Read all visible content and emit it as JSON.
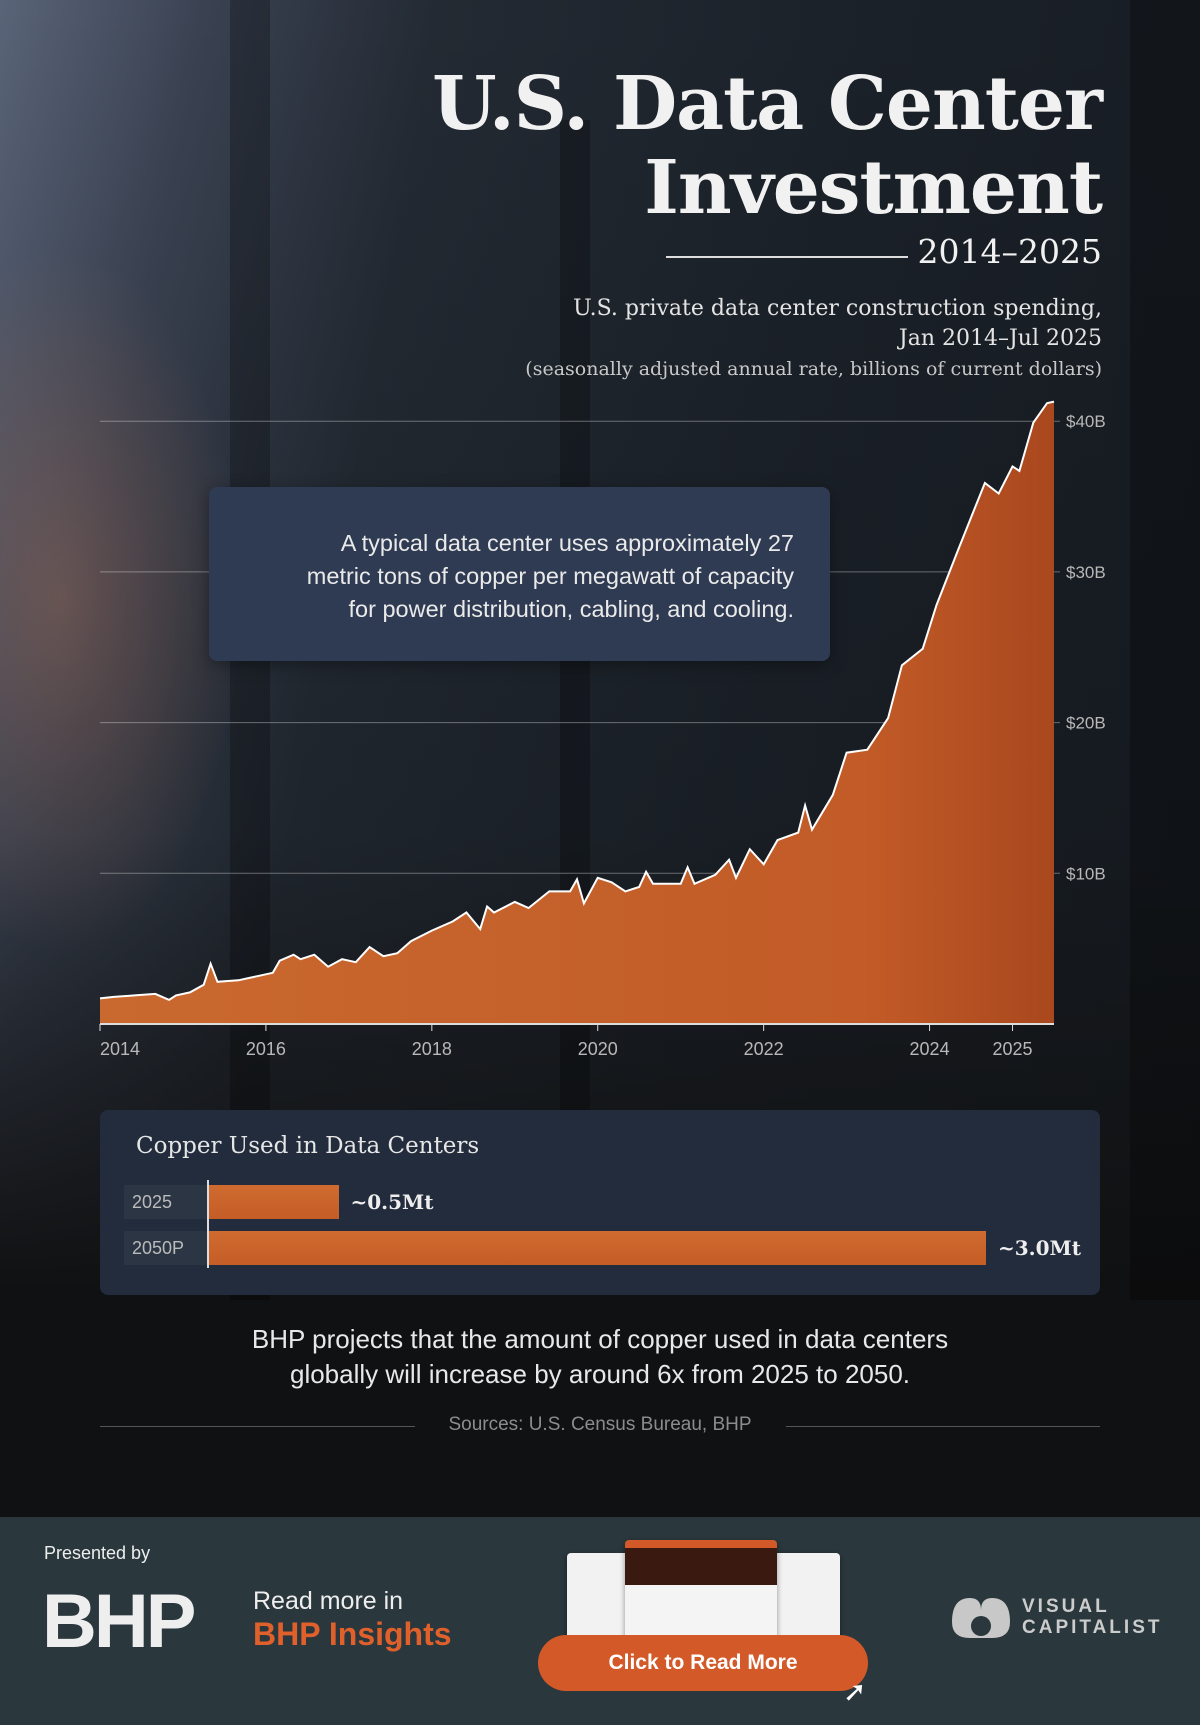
{
  "header": {
    "title_line1": "U.S. Data Center",
    "title_line2": "Investment",
    "years": "2014–2025",
    "subtitle_line1": "U.S. private data center construction spending,",
    "subtitle_line2": "Jan 2014–Jul 2025",
    "subtitle_note": "(seasonally adjusted annual rate, billions of current dollars)"
  },
  "annotation": {
    "line1": "A typical data center uses approximately 27",
    "line2": "metric tons of copper per megawatt of capacity",
    "line3": "for power distribution, cabling, and cooling."
  },
  "colors": {
    "area": "#c8622a",
    "line": "#ffffff",
    "accent": "#e0602b",
    "panel": "#222c3c"
  },
  "chart_data": [
    {
      "type": "area",
      "title": "",
      "xlabel": "",
      "ylabel": "",
      "ylim": [
        0,
        41.5
      ],
      "grid": true,
      "x_ticks": [
        "2014",
        "2016",
        "2018",
        "2020",
        "2022",
        "2024",
        "2025"
      ],
      "y_ticks": [
        "$10B",
        "$20B",
        "$30B",
        "$40B"
      ],
      "y_tick_values": [
        10,
        20,
        30,
        40
      ],
      "points": [
        [
          "2014-01",
          1.7
        ],
        [
          "2014-03",
          1.8
        ],
        [
          "2014-06",
          1.9
        ],
        [
          "2014-09",
          2.0
        ],
        [
          "2014-11",
          1.6
        ],
        [
          "2014-12",
          1.9
        ],
        [
          "2015-02",
          2.1
        ],
        [
          "2015-04",
          2.6
        ],
        [
          "2015-05",
          4.0
        ],
        [
          "2015-06",
          2.8
        ],
        [
          "2015-09",
          2.9
        ],
        [
          "2015-12",
          3.2
        ],
        [
          "2016-02",
          3.4
        ],
        [
          "2016-03",
          4.2
        ],
        [
          "2016-05",
          4.6
        ],
        [
          "2016-06",
          4.3
        ],
        [
          "2016-08",
          4.6
        ],
        [
          "2016-10",
          3.8
        ],
        [
          "2016-12",
          4.3
        ],
        [
          "2017-02",
          4.1
        ],
        [
          "2017-04",
          5.1
        ],
        [
          "2017-06",
          4.5
        ],
        [
          "2017-08",
          4.7
        ],
        [
          "2017-10",
          5.5
        ],
        [
          "2018-01",
          6.2
        ],
        [
          "2018-04",
          6.8
        ],
        [
          "2018-06",
          7.4
        ],
        [
          "2018-08",
          6.3
        ],
        [
          "2018-09",
          7.8
        ],
        [
          "2018-10",
          7.4
        ],
        [
          "2019-01",
          8.1
        ],
        [
          "2019-03",
          7.7
        ],
        [
          "2019-06",
          8.8
        ],
        [
          "2019-09",
          8.8
        ],
        [
          "2019-10",
          9.6
        ],
        [
          "2019-11",
          8.0
        ],
        [
          "2020-01",
          9.7
        ],
        [
          "2020-03",
          9.4
        ],
        [
          "2020-05",
          8.8
        ],
        [
          "2020-07",
          9.1
        ],
        [
          "2020-08",
          10.1
        ],
        [
          "2020-09",
          9.3
        ],
        [
          "2021-01",
          9.3
        ],
        [
          "2021-02",
          10.4
        ],
        [
          "2021-03",
          9.3
        ],
        [
          "2021-06",
          9.9
        ],
        [
          "2021-08",
          10.9
        ],
        [
          "2021-09",
          9.7
        ],
        [
          "2021-11",
          11.6
        ],
        [
          "2022-01",
          10.6
        ],
        [
          "2022-03",
          12.2
        ],
        [
          "2022-06",
          12.7
        ],
        [
          "2022-07",
          14.5
        ],
        [
          "2022-08",
          12.9
        ],
        [
          "2022-11",
          15.2
        ],
        [
          "2023-01",
          18.0
        ],
        [
          "2023-04",
          18.2
        ],
        [
          "2023-07",
          20.3
        ],
        [
          "2023-09",
          23.8
        ],
        [
          "2023-12",
          24.9
        ],
        [
          "2024-02",
          27.8
        ],
        [
          "2024-05",
          31.3
        ],
        [
          "2024-07",
          33.6
        ],
        [
          "2024-09",
          35.9
        ],
        [
          "2024-11",
          35.2
        ],
        [
          "2025-01",
          37.0
        ],
        [
          "2025-02",
          36.7
        ],
        [
          "2025-04",
          39.9
        ],
        [
          "2025-06",
          41.2
        ],
        [
          "2025-07",
          41.3
        ]
      ]
    },
    {
      "type": "bar",
      "title": "Copper Used in Data Centers",
      "categories": [
        "2025",
        "2050P"
      ],
      "values": [
        0.5,
        3.0
      ],
      "data_labels": [
        "~0.5Mt",
        "~3.0Mt"
      ],
      "unit": "Mt"
    }
  ],
  "claim": {
    "line1": "BHP projects that the amount of copper used in data centers",
    "line2": "globally will increase by around 6x from 2025 to 2050."
  },
  "sources": "Sources: U.S. Census Bureau, BHP",
  "footer": {
    "presented_by": "Presented by",
    "bhp_logo": "BHP",
    "read_more": "Read more in",
    "insights": "BHP Insights",
    "cta": "Click to Read More",
    "vc_line1": "VISUAL",
    "vc_line2": "CAPITALIST"
  }
}
